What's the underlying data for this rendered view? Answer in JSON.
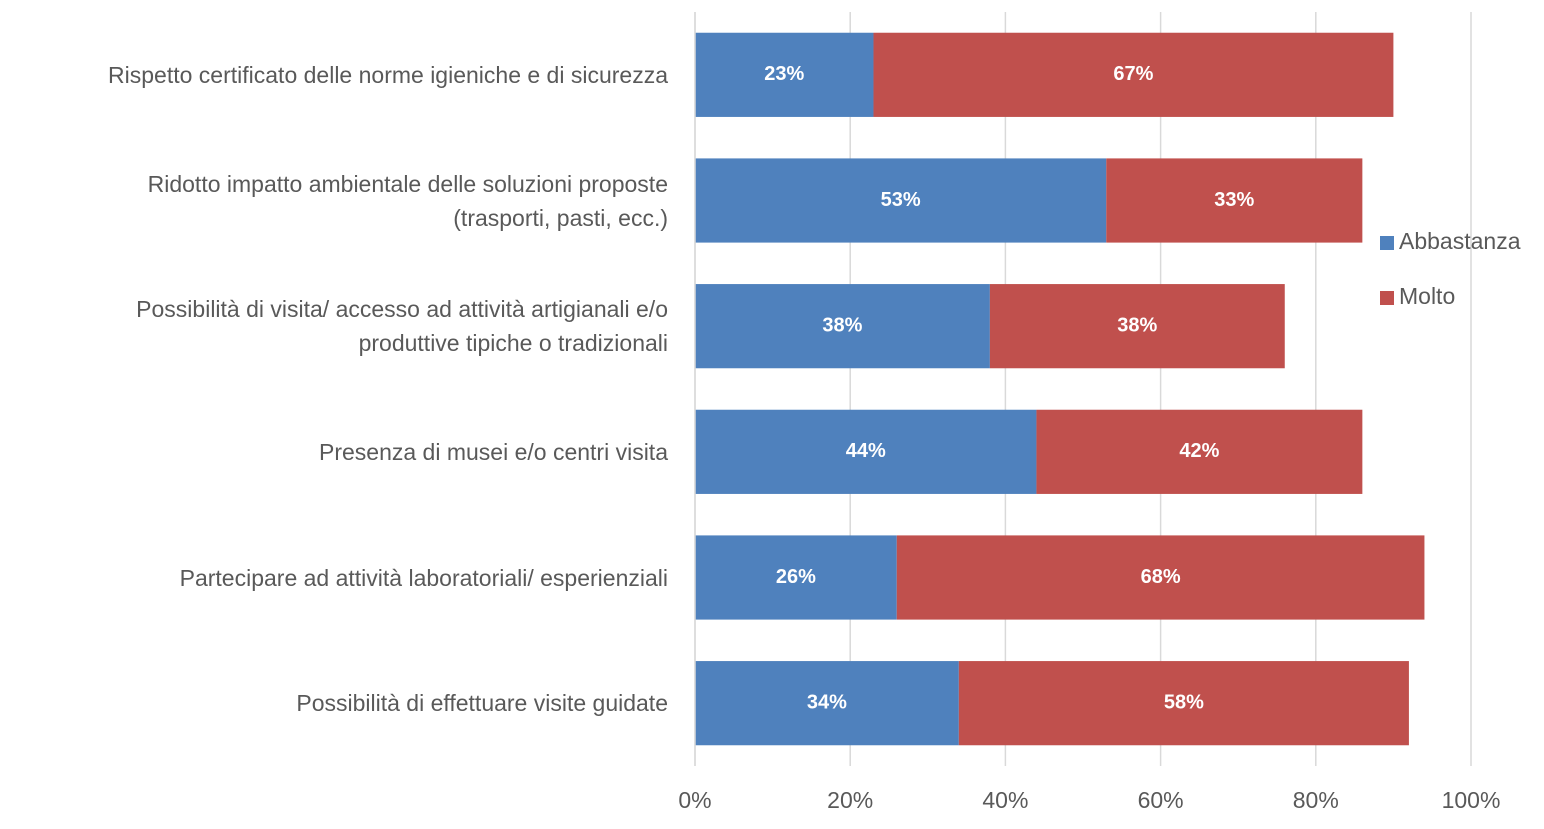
{
  "chart_data": {
    "type": "stacked_barh",
    "categories": [
      "Rispetto certificato delle norme igieniche e di sicurezza",
      "Ridotto impatto ambientale delle soluzioni proposte\n(trasporti, pasti, ecc.)",
      "Possibilità di visita/ accesso ad attività artigianali e/o\nproduttive tipiche o tradizionali",
      "Presenza di musei e/o centri visita",
      "Partecipare ad attività laboratoriali/ esperienziali",
      "Possibilità di effettuare visite guidate"
    ],
    "series": [
      {
        "name": "Abbastanza",
        "color": "#4f81bd",
        "values": [
          23,
          53,
          38,
          44,
          26,
          34
        ],
        "value_labels": [
          "23%",
          "53%",
          "38%",
          "44%",
          "26%",
          "34%"
        ]
      },
      {
        "name": "Molto",
        "color": "#c0504d",
        "values": [
          67,
          33,
          38,
          42,
          68,
          58
        ],
        "value_labels": [
          "67%",
          "33%",
          "38%",
          "42%",
          "68%",
          "58%"
        ]
      }
    ],
    "xlim": [
      0,
      100
    ],
    "xticks": [
      {
        "value": 0,
        "label": "0%"
      },
      {
        "value": 20,
        "label": "20%"
      },
      {
        "value": 40,
        "label": "40%"
      },
      {
        "value": 60,
        "label": "60%"
      },
      {
        "value": 80,
        "label": "80%"
      },
      {
        "value": 100,
        "label": "100%"
      }
    ],
    "grid": true,
    "legend": "right"
  }
}
